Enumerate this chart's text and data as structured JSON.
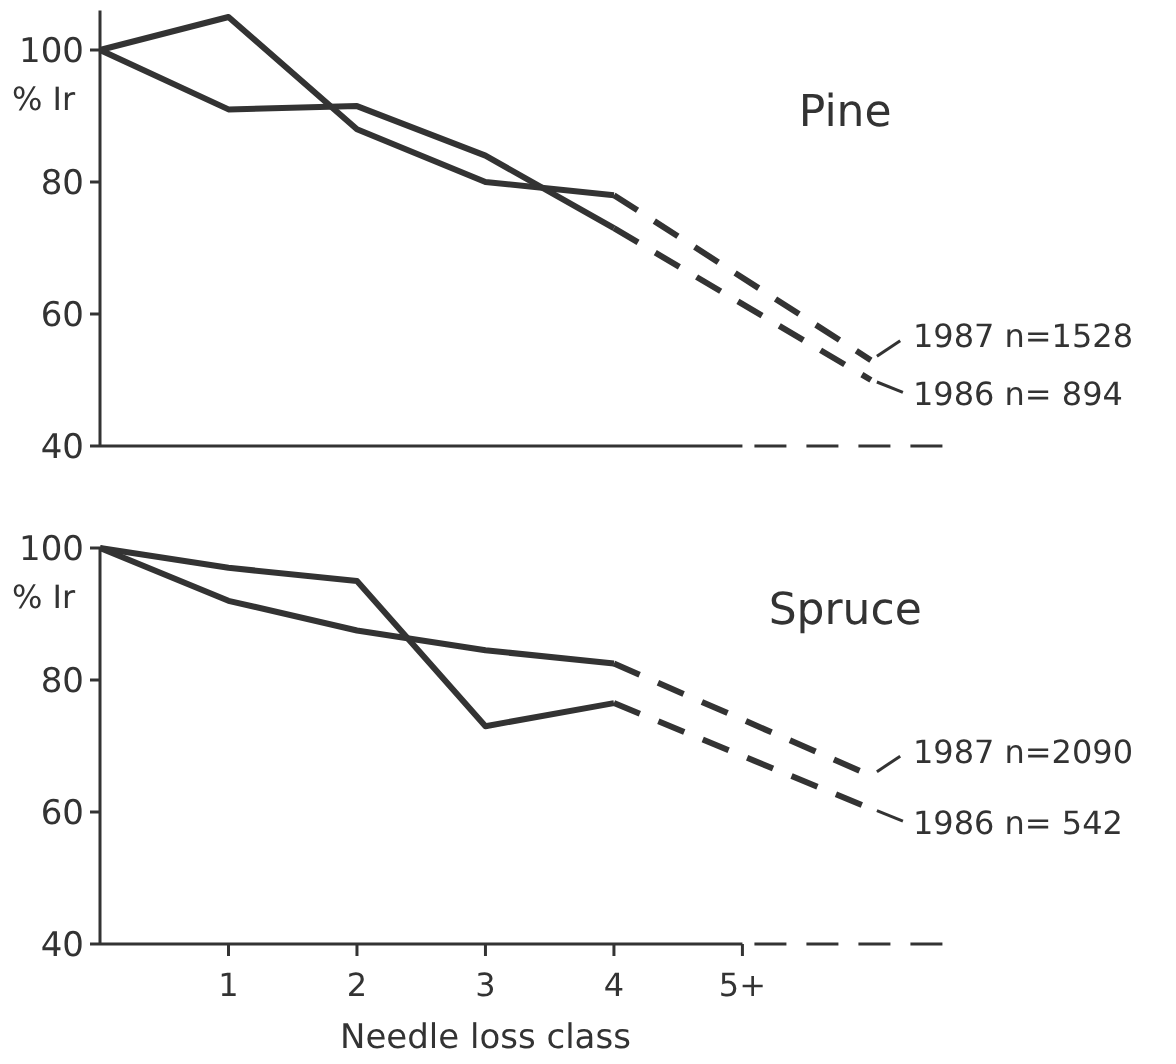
{
  "chart_data": [
    {
      "type": "line",
      "title": "Pine",
      "ylabel": "% Ir",
      "xlim": [
        0,
        6.6
      ],
      "ylim": [
        40,
        106
      ],
      "yticks": [
        40,
        60,
        80,
        100
      ],
      "tick_labels": "y",
      "grid": false,
      "legend": "right",
      "series": [
        {
          "x": [
            0,
            1,
            2,
            3,
            4
          ],
          "values": [
            100,
            105,
            88,
            80,
            78
          ],
          "color": "#333333",
          "line_style": "solid"
        },
        {
          "x": [
            0,
            1,
            2,
            3,
            4
          ],
          "values": [
            100,
            91,
            91.5,
            84,
            73
          ],
          "color": "#333333",
          "line_style": "solid"
        },
        {
          "name": "1987 n=1528",
          "x": [
            4,
            6
          ],
          "values": [
            78,
            53
          ],
          "color": "#333333",
          "line_style": "dashed"
        },
        {
          "name": "1986 n= 894",
          "x": [
            4,
            6
          ],
          "values": [
            73,
            50
          ],
          "color": "#333333",
          "line_style": "dashed"
        }
      ]
    },
    {
      "type": "line",
      "title": "Spruce",
      "ylabel": "% Ir",
      "xlabel": "Needle loss class",
      "xlim": [
        0,
        6.6
      ],
      "ylim": [
        40,
        100
      ],
      "yticks": [
        40,
        60,
        80,
        100
      ],
      "xticks": [
        1,
        2,
        3,
        4,
        {
          "value": 5,
          "label": "5+"
        }
      ],
      "grid": false,
      "legend": "right",
      "series": [
        {
          "x": [
            0,
            1,
            2,
            3,
            4
          ],
          "values": [
            100,
            92,
            87.5,
            84.5,
            82.5
          ],
          "color": "#333333",
          "line_style": "solid"
        },
        {
          "x": [
            0,
            1,
            2,
            3,
            4
          ],
          "values": [
            100,
            97,
            95,
            73,
            76.5
          ],
          "color": "#333333",
          "line_style": "solid"
        },
        {
          "name": "1987 n=2090",
          "x": [
            4,
            6
          ],
          "values": [
            82.5,
            65.5
          ],
          "color": "#333333",
          "line_style": "dashed"
        },
        {
          "name": "1986 n= 542",
          "x": [
            4,
            6
          ],
          "values": [
            76.5,
            60.5
          ],
          "color": "#333333",
          "line_style": "dashed"
        }
      ]
    }
  ]
}
